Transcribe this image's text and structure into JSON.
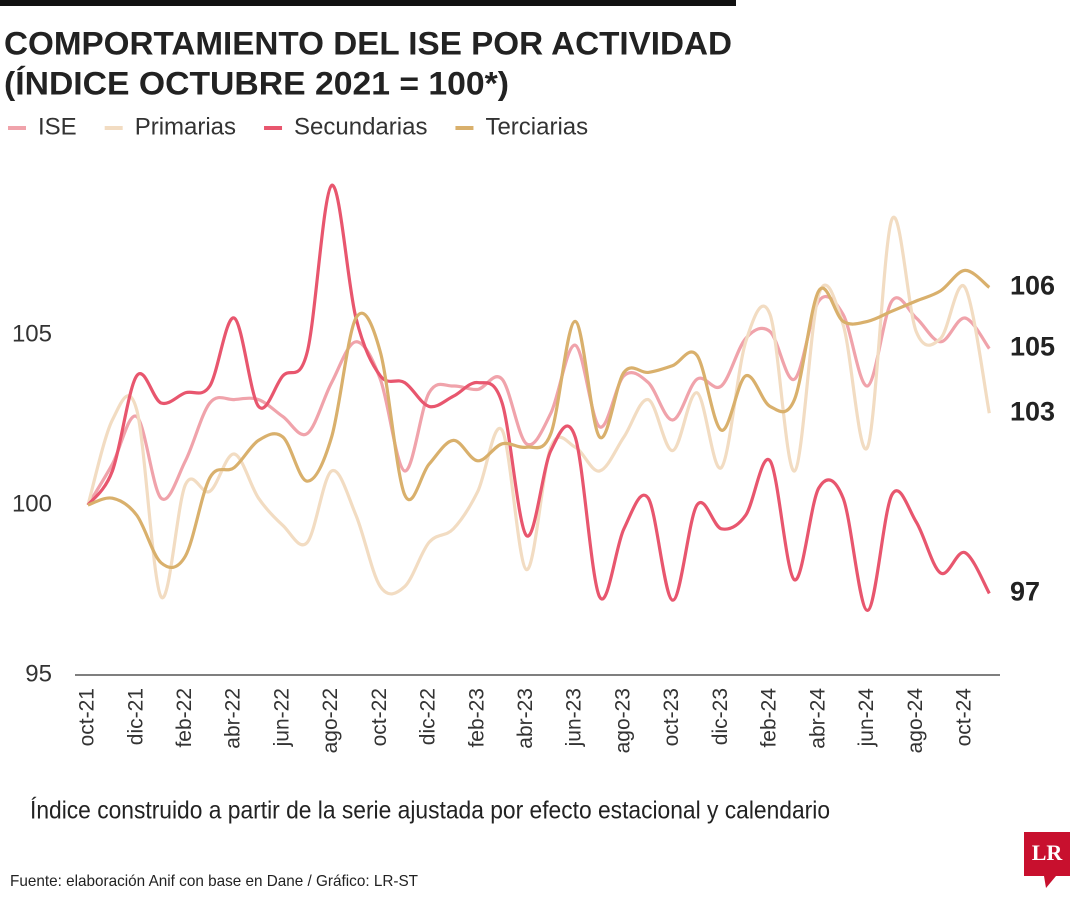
{
  "chart_data": {
    "type": "line",
    "title": [
      "COMPORTAMIENTO DEL ISE POR ACTIVIDAD",
      "(ÍNDICE OCTUBRE 2021 = 100*)"
    ],
    "note": "Índice construido a partir de la serie ajustada por efecto estacional y calendario",
    "source": "Fuente: elaboración Anif con base en Dane / Gráfico: LR-ST",
    "logo": "LR",
    "categories": [
      "oct-21",
      null,
      "dic-21",
      null,
      "feb-22",
      null,
      "abr-22",
      null,
      "jun-22",
      null,
      "ago-22",
      null,
      "oct-22",
      null,
      "dic-22",
      null,
      "feb-23",
      null,
      "abr-23",
      null,
      "jun-23",
      null,
      "ago-23",
      null,
      "oct-23",
      null,
      "dic-23",
      null,
      "feb-24",
      null,
      "abr-24",
      null,
      "jun-24",
      null,
      "ago-24",
      null,
      "oct-24",
      null
    ],
    "ylim": [
      95,
      110
    ],
    "yticks": [
      95,
      100,
      105
    ],
    "grid": false,
    "series": [
      {
        "name": "ISE",
        "color": "#f0a3ab",
        "values": [
          100,
          101.2,
          102.6,
          100.2,
          101.3,
          103,
          103.1,
          103.1,
          102.6,
          102.1,
          103.6,
          104.8,
          103.7,
          101,
          103.3,
          103.5,
          103.4,
          103.7,
          101.8,
          102.7,
          104.7,
          102.3,
          103.8,
          103.6,
          102.5,
          103.7,
          103.5,
          104.9,
          105.1,
          103.7,
          106,
          105.6,
          103.5,
          106,
          105.5,
          104.8,
          105.5,
          104.6
        ],
        "value_labels": [
          null,
          null,
          null,
          null,
          null,
          null,
          null,
          null,
          null,
          null,
          null,
          null,
          null,
          null,
          null,
          null,
          null,
          null,
          null,
          null,
          null,
          null,
          null,
          null,
          null,
          null,
          null,
          null,
          null,
          null,
          null,
          null,
          null,
          null,
          null,
          null,
          null,
          "105"
        ]
      },
      {
        "name": "Primarias",
        "color": "#f2dcc2",
        "values": [
          100,
          102.5,
          102.8,
          97.3,
          100.6,
          100.4,
          101.5,
          100.2,
          99.4,
          98.9,
          101,
          99.7,
          97.6,
          97.6,
          98.9,
          99.3,
          100.4,
          102.2,
          98.1,
          101.7,
          101.7,
          101,
          102,
          103.1,
          101.6,
          103.3,
          101.1,
          104.8,
          105.6,
          101,
          106.2,
          105.3,
          101.7,
          108.4,
          105.1,
          104.9,
          106.4,
          102.7
        ],
        "value_labels": [
          null,
          null,
          null,
          null,
          null,
          null,
          null,
          null,
          null,
          null,
          null,
          null,
          null,
          null,
          null,
          null,
          null,
          null,
          null,
          null,
          null,
          null,
          null,
          null,
          null,
          null,
          null,
          null,
          null,
          null,
          null,
          null,
          null,
          null,
          null,
          null,
          null,
          "103"
        ]
      },
      {
        "name": "Secundarias",
        "color": "#e8566e",
        "values": [
          100,
          101,
          103.8,
          103,
          103.3,
          103.5,
          105.5,
          102.9,
          103.8,
          104.5,
          109.4,
          105.5,
          103.8,
          103.6,
          102.9,
          103.2,
          103.6,
          103,
          99.1,
          101.6,
          102,
          97.3,
          99.3,
          100.2,
          97.2,
          100,
          99.3,
          99.7,
          101.3,
          97.8,
          100.5,
          100.2,
          96.9,
          100.3,
          99.5,
          98,
          98.6,
          97.4
        ],
        "value_labels": [
          null,
          null,
          null,
          null,
          null,
          null,
          null,
          null,
          null,
          null,
          null,
          null,
          null,
          null,
          null,
          null,
          null,
          null,
          null,
          null,
          null,
          null,
          null,
          null,
          null,
          null,
          null,
          null,
          null,
          null,
          null,
          null,
          null,
          null,
          null,
          null,
          null,
          "97"
        ]
      },
      {
        "name": "Terciarias",
        "color": "#d9b06c",
        "values": [
          100,
          100.2,
          99.7,
          98.3,
          98.5,
          100.8,
          101.1,
          101.9,
          102,
          100.7,
          102,
          105.5,
          104.5,
          100.3,
          101.2,
          101.9,
          101.3,
          101.8,
          101.7,
          102.1,
          105.4,
          102,
          103.9,
          103.9,
          104.1,
          104.4,
          102.2,
          103.8,
          102.9,
          103.1,
          106.3,
          105.4,
          105.4,
          105.7,
          106,
          106.3,
          106.9,
          106.4
        ],
        "value_labels": [
          null,
          null,
          null,
          null,
          null,
          null,
          null,
          null,
          null,
          null,
          null,
          null,
          null,
          null,
          null,
          null,
          null,
          null,
          null,
          null,
          null,
          null,
          null,
          null,
          null,
          null,
          null,
          null,
          null,
          null,
          null,
          null,
          null,
          null,
          null,
          null,
          null,
          "106"
        ]
      }
    ]
  }
}
